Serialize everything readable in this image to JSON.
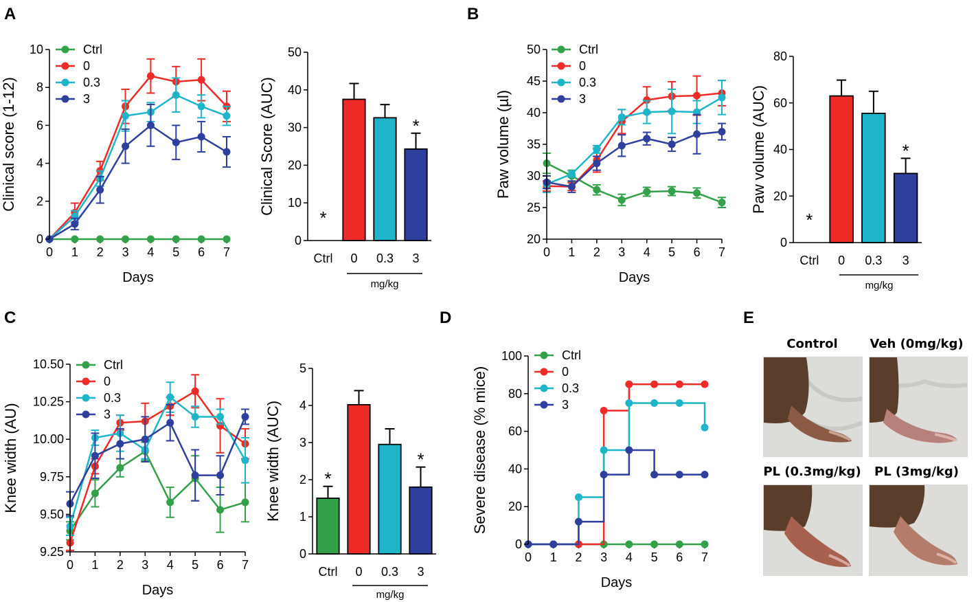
{
  "colors": {
    "ctrl": "#33a04a",
    "v0": "#ee2b26",
    "v03": "#1fb5c9",
    "v3": "#2f3f9d"
  },
  "panels": {
    "A": {
      "label": "A",
      "mgkg": "mg/kg"
    },
    "B": {
      "label": "B",
      "mgkg": "mg/kg"
    },
    "C": {
      "label": "C",
      "mgkg": "mg/kg"
    },
    "D": {
      "label": "D"
    },
    "E": {
      "label": "E"
    }
  },
  "photos": {
    "control": "Control",
    "veh": "Veh (0mg/kg)",
    "pl03": "PL (0.3mg/kg)",
    "pl3": "PL (3mg/kg)"
  },
  "chart_data": [
    {
      "id": "A-line",
      "type": "line",
      "xlabel": "Days",
      "ylabel": "Clinical score (1-12)",
      "ylim": [
        0,
        10
      ],
      "yticks": [
        0,
        2,
        4,
        6,
        8,
        10
      ],
      "x": [
        0,
        1,
        2,
        3,
        4,
        5,
        6,
        7
      ],
      "legend": [
        "Ctrl",
        "0",
        "0.3",
        "3"
      ],
      "series": [
        {
          "name": "Ctrl",
          "color": "#33a04a",
          "values": [
            0,
            0,
            0,
            0,
            0,
            0,
            0,
            0
          ],
          "errors": [
            0,
            0,
            0,
            0,
            0,
            0,
            0,
            0
          ]
        },
        {
          "name": "0",
          "color": "#ee2b26",
          "values": [
            0,
            1.4,
            3.6,
            7.0,
            8.6,
            8.3,
            8.4,
            7.0
          ],
          "errors": [
            0,
            0.5,
            0.5,
            0.9,
            0.9,
            0.8,
            1.1,
            0.8
          ]
        },
        {
          "name": "0.3",
          "color": "#1fb5c9",
          "values": [
            0,
            1.2,
            3.2,
            6.5,
            6.7,
            7.6,
            7.0,
            6.5
          ],
          "errors": [
            0,
            0.3,
            0.4,
            0.8,
            0.5,
            0.9,
            0.6,
            0.5
          ]
        },
        {
          "name": "3",
          "color": "#2f3f9d",
          "values": [
            0,
            0.8,
            2.6,
            4.9,
            6.0,
            5.1,
            5.4,
            4.6
          ],
          "errors": [
            0,
            0.3,
            0.7,
            0.9,
            1.1,
            0.9,
            0.8,
            0.8
          ]
        }
      ]
    },
    {
      "id": "A-bar",
      "type": "bar",
      "ylabel": "Clinical Score (AUC)",
      "ylim": [
        0,
        50
      ],
      "yticks": [
        0,
        10,
        20,
        30,
        40,
        50
      ],
      "categories": [
        "Ctrl",
        "0",
        "0.3",
        "3"
      ],
      "values": [
        0,
        37.5,
        32.6,
        24.3
      ],
      "errors": [
        0,
        4.2,
        3.5,
        4.2
      ],
      "colors": [
        "#33a04a",
        "#ee2b26",
        "#1fb5c9",
        "#2f3f9d"
      ],
      "significance": [
        "*",
        "",
        "",
        "*"
      ]
    },
    {
      "id": "B-line",
      "type": "line",
      "xlabel": "Days",
      "ylabel": "Paw volume (µl)",
      "ylim": [
        20,
        50
      ],
      "yticks": [
        20,
        25,
        30,
        35,
        40,
        45,
        50
      ],
      "x": [
        0,
        1,
        2,
        3,
        4,
        5,
        6,
        7
      ],
      "legend": [
        "Ctrl",
        "0",
        "0.3",
        "3"
      ],
      "series": [
        {
          "name": "Ctrl",
          "color": "#33a04a",
          "values": [
            32.0,
            30.0,
            27.8,
            26.2,
            27.5,
            27.6,
            27.3,
            25.8
          ],
          "errors": [
            1.6,
            0.9,
            0.8,
            0.9,
            0.7,
            0.7,
            0.8,
            0.8
          ]
        },
        {
          "name": "0",
          "color": "#ee2b26",
          "values": [
            28.4,
            28.3,
            32.5,
            38.6,
            42.0,
            42.6,
            42.7,
            43.1
          ],
          "errors": [
            0.8,
            0.6,
            1.9,
            1.9,
            2.1,
            2.3,
            3.1,
            2.0
          ]
        },
        {
          "name": "0.3",
          "color": "#1fb5c9",
          "values": [
            28.7,
            30.3,
            34.2,
            39.3,
            40.1,
            40.2,
            40.1,
            42.4
          ],
          "errors": [
            1.3,
            0.5,
            0.6,
            1.2,
            1.8,
            3.5,
            1.8,
            2.7
          ]
        },
        {
          "name": "3",
          "color": "#2f3f9d",
          "values": [
            29.0,
            28.3,
            32.0,
            34.8,
            35.9,
            35.0,
            36.6,
            37.0
          ],
          "errors": [
            1.0,
            0.9,
            1.1,
            1.7,
            1.0,
            1.1,
            3.1,
            1.3
          ]
        }
      ]
    },
    {
      "id": "B-bar",
      "type": "bar",
      "ylabel": "Paw volume (AUC)",
      "ylim": [
        0,
        80
      ],
      "yticks": [
        0,
        20,
        40,
        60,
        80
      ],
      "categories": [
        "Ctrl",
        "0",
        "0.3",
        "3"
      ],
      "values": [
        0,
        63.0,
        55.5,
        29.7
      ],
      "errors": [
        0,
        6.8,
        9.5,
        6.5
      ],
      "colors": [
        "#33a04a",
        "#ee2b26",
        "#1fb5c9",
        "#2f3f9d"
      ],
      "significance": [
        "*",
        "",
        "",
        "*"
      ]
    },
    {
      "id": "C-line",
      "type": "line",
      "xlabel": "Days",
      "ylabel": "Knee width (AU)",
      "ylim": [
        9.25,
        10.5
      ],
      "yticks": [
        9.25,
        9.5,
        9.75,
        10.0,
        10.25,
        10.5
      ],
      "ytick_labels": [
        "9.25",
        "9.50",
        "9.75",
        "10.00",
        "10.25",
        "10.50"
      ],
      "x": [
        0,
        1,
        2,
        3,
        4,
        5,
        6,
        7
      ],
      "legend": [
        "Ctrl",
        "0",
        "0.3",
        "3"
      ],
      "series": [
        {
          "name": "Ctrl",
          "color": "#33a04a",
          "values": [
            9.39,
            9.64,
            9.81,
            9.92,
            9.58,
            9.74,
            9.53,
            9.58
          ],
          "errors": [
            0.06,
            0.09,
            0.06,
            0.06,
            0.1,
            0.15,
            0.15,
            0.13
          ]
        },
        {
          "name": "0",
          "color": "#ee2b26",
          "values": [
            9.31,
            9.82,
            10.11,
            10.12,
            10.22,
            10.32,
            10.09,
            9.97
          ],
          "errors": [
            0.05,
            0.05,
            0.05,
            0.12,
            0.06,
            0.11,
            0.18,
            0.1
          ]
        },
        {
          "name": "0.3",
          "color": "#1fb5c9",
          "values": [
            9.42,
            10.01,
            10.04,
            9.93,
            10.28,
            10.15,
            10.15,
            9.86
          ],
          "errors": [
            0.06,
            0.05,
            0.12,
            0.06,
            0.1,
            0.07,
            0.05,
            0.15
          ]
        },
        {
          "name": "3",
          "color": "#2f3f9d",
          "values": [
            9.57,
            9.89,
            9.97,
            10.0,
            10.11,
            9.76,
            9.76,
            10.15
          ],
          "errors": [
            0.08,
            0.15,
            0.1,
            0.15,
            0.12,
            0.17,
            0.13,
            0.05
          ]
        }
      ]
    },
    {
      "id": "C-bar",
      "type": "bar",
      "ylabel": "Knee width (AUC)",
      "ylim": [
        0,
        5
      ],
      "yticks": [
        0,
        1,
        2,
        3,
        4,
        5
      ],
      "categories": [
        "Ctrl",
        "0",
        "0.3",
        "3"
      ],
      "values": [
        1.5,
        4.02,
        2.95,
        1.8
      ],
      "errors": [
        0.32,
        0.38,
        0.42,
        0.54
      ],
      "colors": [
        "#33a04a",
        "#ee2b26",
        "#1fb5c9",
        "#2f3f9d"
      ],
      "significance": [
        "*",
        "",
        "",
        "*"
      ]
    },
    {
      "id": "D-step",
      "type": "line",
      "step": true,
      "xlabel": "Days",
      "ylabel": "Severe disease (% mice)",
      "ylim": [
        0,
        100
      ],
      "yticks": [
        0,
        20,
        40,
        60,
        80,
        100
      ],
      "x": [
        0,
        1,
        2,
        3,
        4,
        5,
        6,
        7
      ],
      "legend": [
        "Ctrl",
        "0",
        "0.3",
        "3"
      ],
      "series": [
        {
          "name": "Ctrl",
          "color": "#33a04a",
          "values": [
            0,
            0,
            0,
            0,
            0,
            0,
            0,
            0
          ]
        },
        {
          "name": "0",
          "color": "#ee2b26",
          "values": [
            0,
            0,
            0,
            71,
            85,
            85,
            85,
            85
          ]
        },
        {
          "name": "0.3",
          "color": "#1fb5c9",
          "values": [
            0,
            0,
            25,
            50,
            75,
            75,
            75,
            62
          ]
        },
        {
          "name": "3",
          "color": "#2f3f9d",
          "values": [
            0,
            0,
            12,
            37,
            50,
            37,
            37,
            37
          ]
        }
      ]
    }
  ]
}
